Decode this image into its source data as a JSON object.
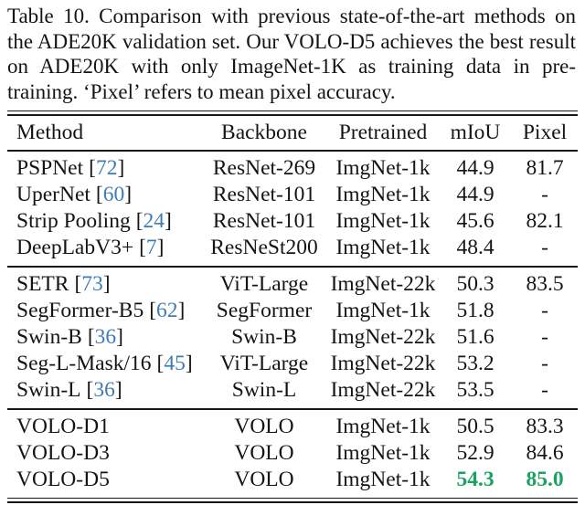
{
  "caption": "Table 10. Comparison with previous state-of-the-art methods on the ADE20K validation set. Our VOLO-D5 achieves the best result on ADE20K with only ImageNet-1K as training data in pre-training. ‘Pixel’ refers to mean pixel accuracy.",
  "punct": {
    "lbracket": "[",
    "rbracket": "]"
  },
  "colors": {
    "citation_blue": "#3f7cb6",
    "best_green": "#1aa263",
    "text": "#141414",
    "background": "#ffffff"
  },
  "table": {
    "headers": {
      "method": "Method",
      "backbone": "Backbone",
      "pretrained": "Pretrained",
      "miou": "mIoU",
      "pixel": "Pixel"
    },
    "sections": [
      {
        "rows": [
          {
            "method": "PSPNet",
            "cite": "72",
            "backbone": "ResNet-269",
            "pretrained": "ImgNet-1k",
            "miou": "44.9",
            "pixel": "81.7"
          },
          {
            "method": "UperNet",
            "cite": "60",
            "backbone": "ResNet-101",
            "pretrained": "ImgNet-1k",
            "miou": "44.9",
            "pixel": "-"
          },
          {
            "method": "Strip Pooling",
            "cite": "24",
            "backbone": "ResNet-101",
            "pretrained": "ImgNet-1k",
            "miou": "45.6",
            "pixel": "82.1"
          },
          {
            "method": "DeepLabV3+",
            "cite": "7",
            "backbone": "ResNeSt200",
            "pretrained": "ImgNet-1k",
            "miou": "48.4",
            "pixel": "-"
          }
        ]
      },
      {
        "rows": [
          {
            "method": "SETR",
            "cite": "73",
            "backbone": "ViT-Large",
            "pretrained": "ImgNet-22k",
            "miou": "50.3",
            "pixel": "83.5"
          },
          {
            "method": "SegFormer-B5",
            "cite": "62",
            "backbone": "SegFormer",
            "pretrained": "ImgNet-1k",
            "miou": "51.8",
            "pixel": "-"
          },
          {
            "method": "Swin-B",
            "cite": "36",
            "backbone": "Swin-B",
            "pretrained": "ImgNet-22k",
            "miou": "51.6",
            "pixel": "-"
          },
          {
            "method": "Seg-L-Mask/16",
            "cite": "45",
            "backbone": "ViT-Large",
            "pretrained": "ImgNet-22k",
            "miou": "53.2",
            "pixel": "-"
          },
          {
            "method": "Swin-L",
            "cite": "36",
            "backbone": "Swin-L",
            "pretrained": "ImgNet-22k",
            "miou": "53.5",
            "pixel": "-"
          }
        ]
      },
      {
        "rows": [
          {
            "method": "VOLO-D1",
            "backbone": "VOLO",
            "pretrained": "ImgNet-1k",
            "miou": "50.5",
            "pixel": "83.3"
          },
          {
            "method": "VOLO-D3",
            "backbone": "VOLO",
            "pretrained": "ImgNet-1k",
            "miou": "52.9",
            "pixel": "84.6"
          },
          {
            "method": "VOLO-D5",
            "backbone": "VOLO",
            "pretrained": "ImgNet-1k",
            "miou": "54.3",
            "pixel": "85.0",
            "highlight": true
          }
        ]
      }
    ]
  }
}
